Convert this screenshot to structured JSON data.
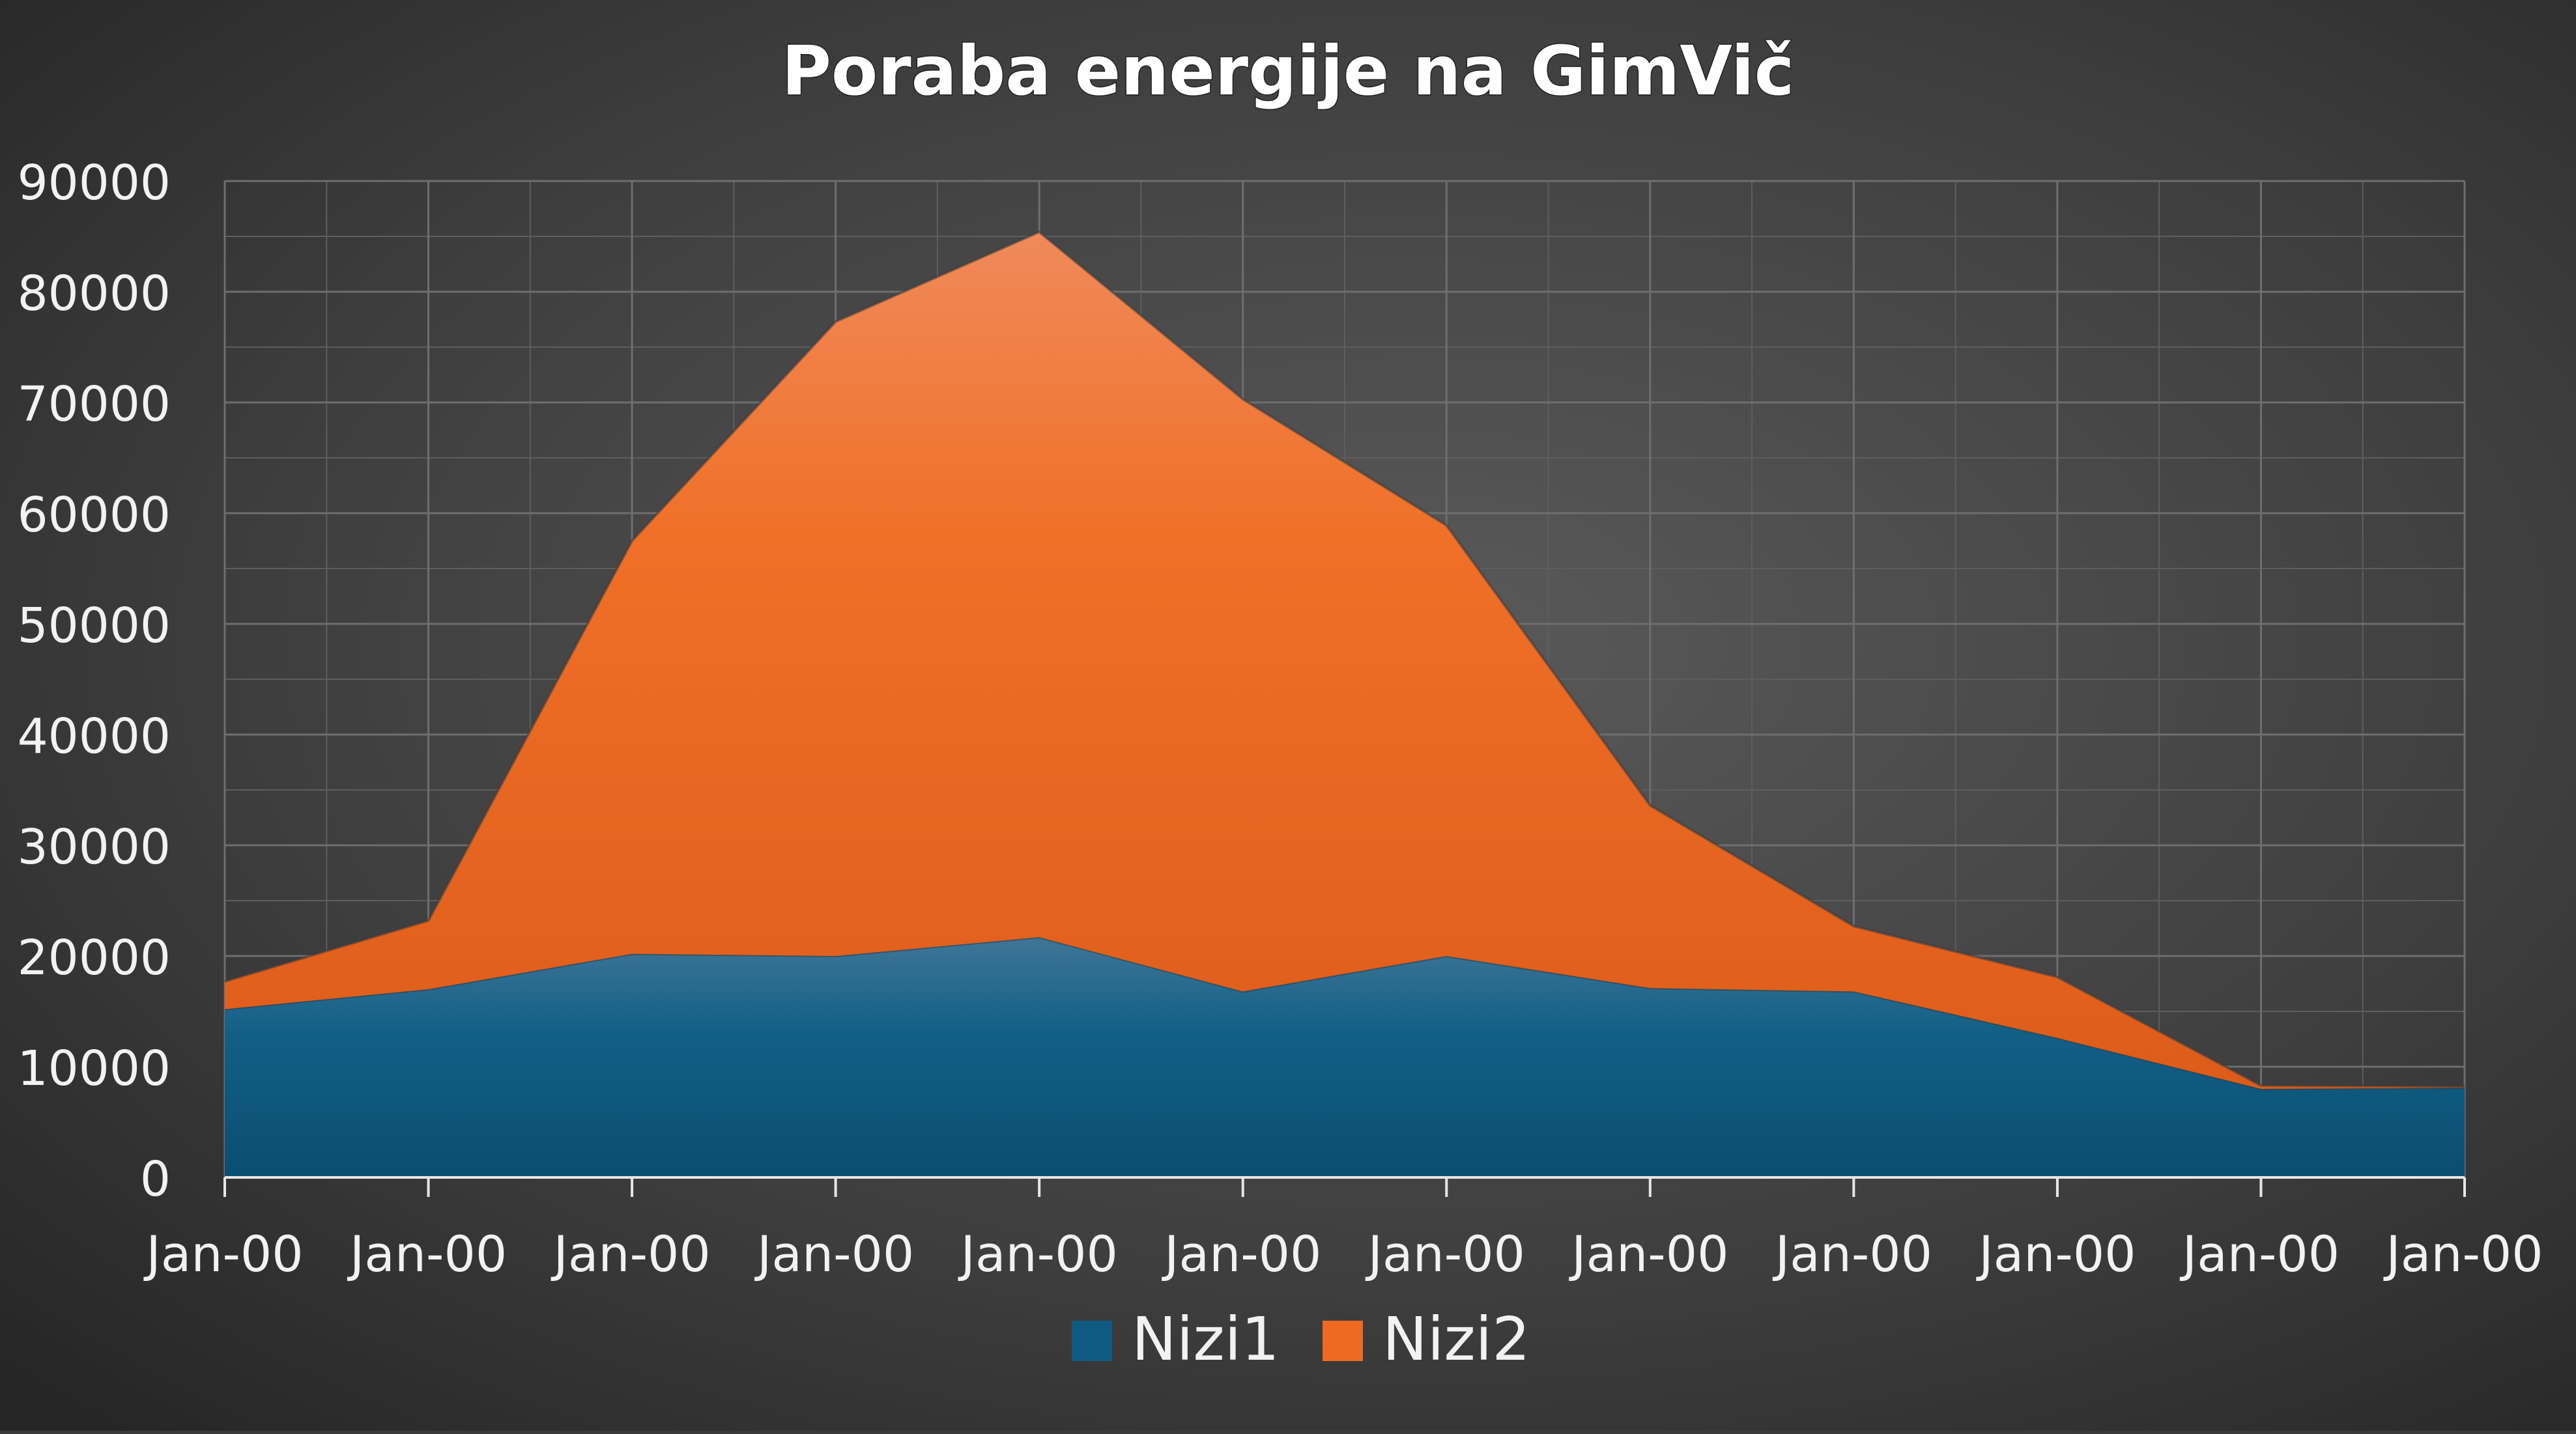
{
  "chart_data": {
    "type": "area",
    "stacked": true,
    "title": "Poraba energije na GimVič",
    "xlabel": "",
    "ylabel": "",
    "x": [
      "Jan-00",
      "Jan-00",
      "Jan-00",
      "Jan-00",
      "Jan-00",
      "Jan-00",
      "Jan-00",
      "Jan-00",
      "Jan-00",
      "Jan-00",
      "Jan-00",
      "Jan-00"
    ],
    "ylim": [
      0,
      90000
    ],
    "yticks": [
      0,
      10000,
      20000,
      30000,
      40000,
      50000,
      60000,
      70000,
      80000,
      90000
    ],
    "grid": true,
    "legend_position": "bottom",
    "series": [
      {
        "name": "Nizi1",
        "color": "#0f5a80",
        "values": [
          15200,
          17000,
          20200,
          20000,
          21700,
          16800,
          20000,
          17100,
          16800,
          12600,
          8000,
          8100
        ]
      },
      {
        "name": "Nizi2",
        "color": "#ee6a22",
        "values": [
          2500,
          6200,
          37300,
          57300,
          63700,
          53500,
          38900,
          16500,
          5900,
          5500,
          300,
          100
        ]
      }
    ]
  }
}
